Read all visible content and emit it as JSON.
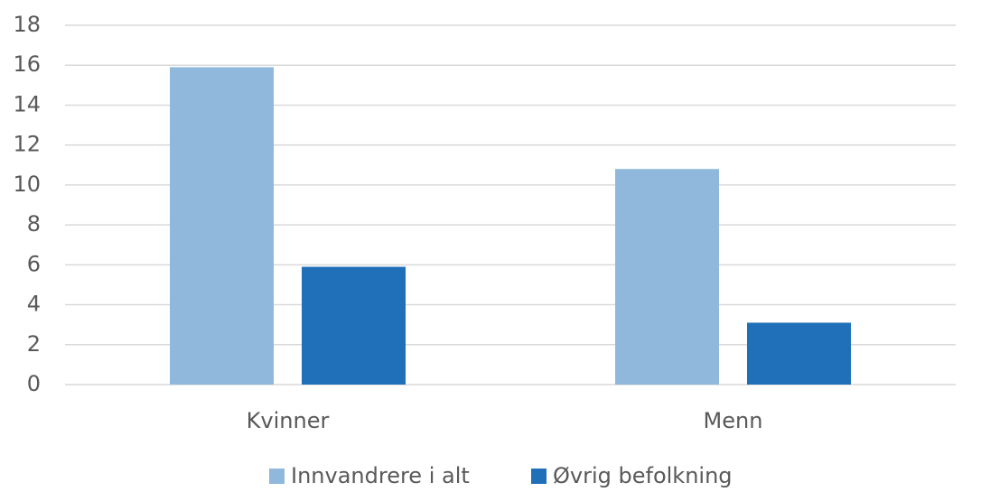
{
  "chart_data": {
    "type": "bar",
    "categories": [
      "Kvinner",
      "Menn"
    ],
    "series": [
      {
        "name": "Innvandrere i alt",
        "color": "#8fb8dc",
        "values": [
          15.9,
          10.8
        ]
      },
      {
        "name": "Øvrig befolkning",
        "color": "#1f70b8",
        "values": [
          5.9,
          3.1
        ]
      }
    ],
    "ylim": [
      0,
      18
    ],
    "yticks": [
      0,
      2,
      4,
      6,
      8,
      10,
      12,
      14,
      16,
      18
    ],
    "grid": true,
    "legend": "bottom"
  }
}
